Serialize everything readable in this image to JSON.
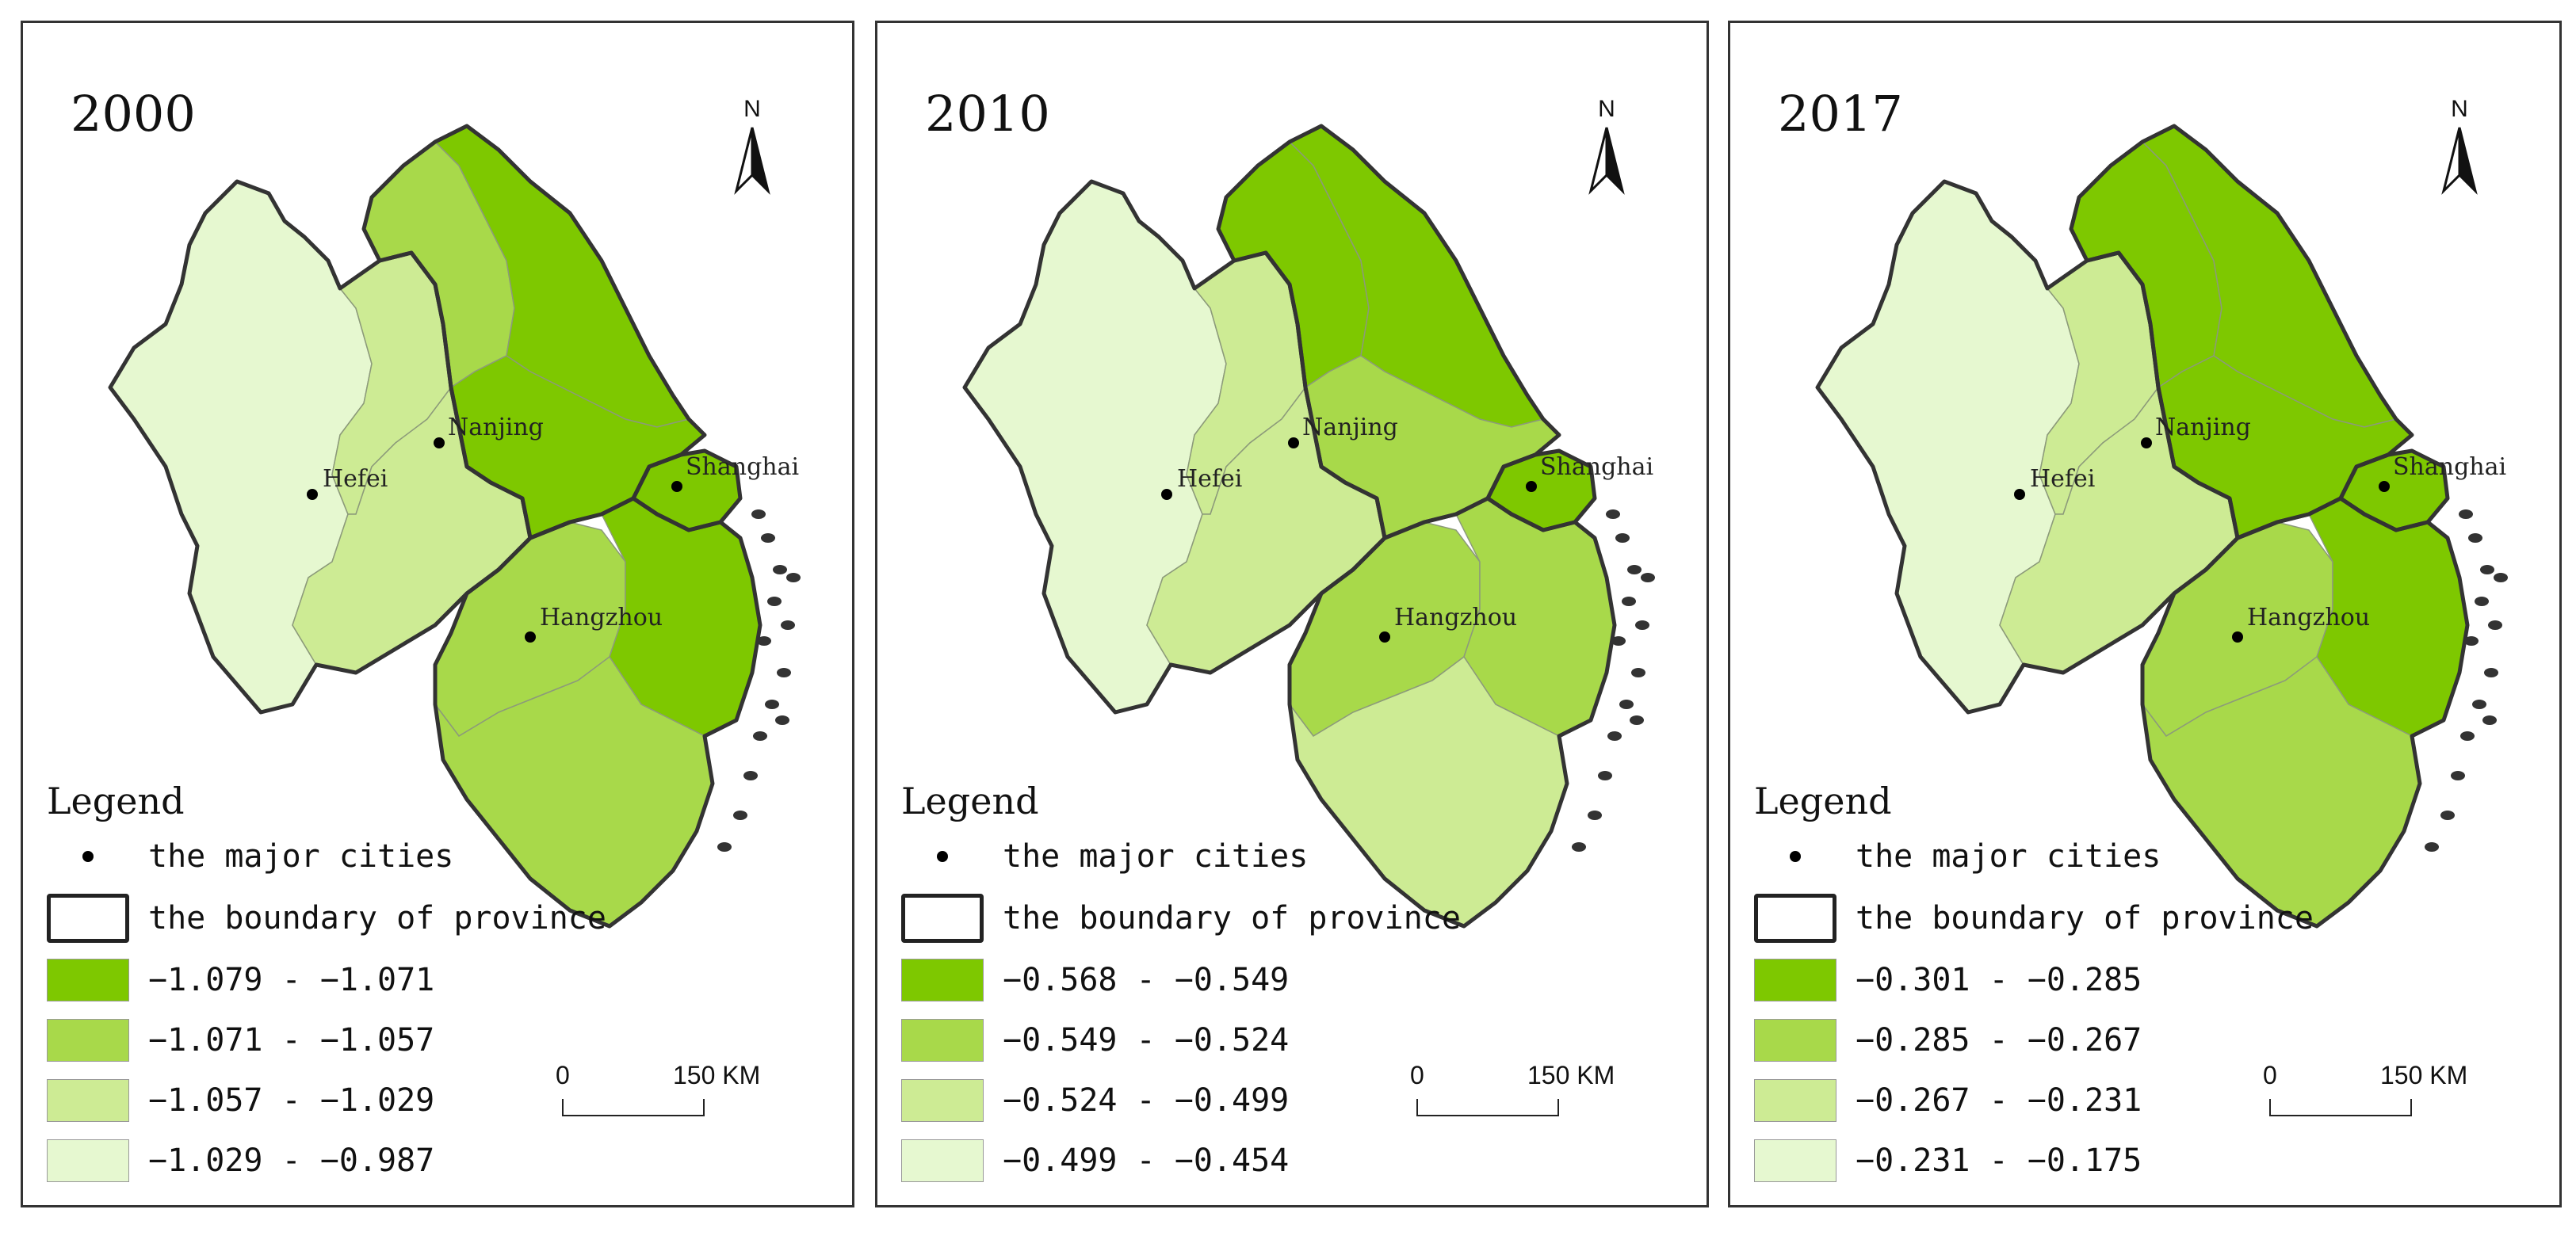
{
  "panels": [
    {
      "year": "2000",
      "north": "N",
      "legend": {
        "title": "Legend",
        "cities_label": "the major cities",
        "boundary_label": "the boundary of province",
        "classes": [
          "−1.079 - −1.071",
          "−1.071 - −1.057",
          "−1.057 - −1.029",
          "−1.029 - −0.987"
        ]
      },
      "scale": {
        "start": "0",
        "end": "150 KM"
      },
      "cities": {
        "hefei": "Hefei",
        "nanjing": "Nanjing",
        "shanghai": "Shanghai",
        "hangzhou": "Hangzhou"
      },
      "fills": {
        "anhui_w": 3,
        "anhui_c": 2,
        "anhui_e": 2,
        "jiangsu_n": 1,
        "jiangsu_c": 0,
        "jiangsu_s": 0,
        "shanghai": 0,
        "zhejiang_w": 1,
        "zhejiang_e": 0,
        "zhejiang_s": 1
      }
    },
    {
      "year": "2010",
      "north": "N",
      "legend": {
        "title": "Legend",
        "cities_label": "the major cities",
        "boundary_label": "the boundary of province",
        "classes": [
          "−0.568 - −0.549",
          "−0.549 - −0.524",
          "−0.524 - −0.499",
          "−0.499 - −0.454"
        ]
      },
      "scale": {
        "start": "0",
        "end": "150 KM"
      },
      "cities": {
        "hefei": "Hefei",
        "nanjing": "Nanjing",
        "shanghai": "Shanghai",
        "hangzhou": "Hangzhou"
      },
      "fills": {
        "anhui_w": 3,
        "anhui_c": 2,
        "anhui_e": 2,
        "jiangsu_n": 0,
        "jiangsu_c": 0,
        "jiangsu_s": 1,
        "shanghai": 0,
        "zhejiang_w": 1,
        "zhejiang_e": 1,
        "zhejiang_s": 2
      }
    },
    {
      "year": "2017",
      "north": "N",
      "legend": {
        "title": "Legend",
        "cities_label": "the major cities",
        "boundary_label": "the boundary of province",
        "classes": [
          "−0.301 - −0.285",
          "−0.285 - −0.267",
          "−0.267 - −0.231",
          "−0.231 - −0.175"
        ]
      },
      "scale": {
        "start": "0",
        "end": "150 KM"
      },
      "cities": {
        "hefei": "Hefei",
        "nanjing": "Nanjing",
        "shanghai": "Shanghai",
        "hangzhou": "Hangzhou"
      },
      "fills": {
        "anhui_w": 3,
        "anhui_c": 2,
        "anhui_e": 2,
        "jiangsu_n": 0,
        "jiangsu_c": 0,
        "jiangsu_s": 0,
        "shanghai": 0,
        "zhejiang_w": 1,
        "zhejiang_e": 0,
        "zhejiang_s": 1
      }
    }
  ],
  "colors": {
    "class_fills": [
      "#7ec800",
      "#a8d94a",
      "#cdeb94",
      "#e6f8d0"
    ],
    "boundary": "#333333",
    "inner_boundary": "#8c9a7a"
  }
}
